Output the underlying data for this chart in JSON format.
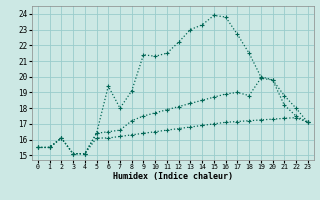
{
  "xlabel": "Humidex (Indice chaleur)",
  "bg_color": "#cce8e4",
  "grid_color": "#99cccc",
  "line_color": "#006655",
  "xlim": [
    -0.5,
    23.5
  ],
  "ylim": [
    14.7,
    24.5
  ],
  "yticks": [
    15,
    16,
    17,
    18,
    19,
    20,
    21,
    22,
    23,
    24
  ],
  "xticks": [
    0,
    1,
    2,
    3,
    4,
    5,
    6,
    7,
    8,
    9,
    10,
    11,
    12,
    13,
    14,
    15,
    16,
    17,
    18,
    19,
    20,
    21,
    22,
    23
  ],
  "line1_x": [
    0,
    1,
    2,
    3,
    4,
    5,
    6,
    7,
    8,
    9,
    10,
    11,
    12,
    13,
    14,
    15,
    16,
    17,
    18,
    19,
    20,
    21,
    22,
    23
  ],
  "line1_y": [
    15.5,
    15.5,
    16.1,
    15.1,
    15.1,
    16.4,
    19.4,
    18.0,
    19.1,
    21.4,
    21.3,
    21.5,
    22.2,
    23.0,
    23.3,
    23.9,
    23.8,
    22.7,
    21.5,
    20.0,
    19.8,
    18.2,
    17.5,
    17.1
  ],
  "line2_x": [
    0,
    1,
    2,
    3,
    4,
    5,
    6,
    7,
    8,
    9,
    10,
    11,
    12,
    13,
    14,
    15,
    16,
    17,
    18,
    19,
    20,
    21,
    22,
    23
  ],
  "line2_y": [
    15.5,
    15.5,
    16.1,
    15.1,
    15.1,
    16.4,
    16.5,
    16.6,
    17.2,
    17.5,
    17.7,
    17.9,
    18.1,
    18.3,
    18.5,
    18.7,
    18.9,
    19.0,
    18.8,
    19.9,
    19.8,
    18.8,
    18.0,
    17.1
  ],
  "line3_x": [
    0,
    1,
    2,
    3,
    4,
    5,
    6,
    7,
    8,
    9,
    10,
    11,
    12,
    13,
    14,
    15,
    16,
    17,
    18,
    19,
    20,
    21,
    22,
    23
  ],
  "line3_y": [
    15.5,
    15.5,
    16.1,
    15.1,
    15.1,
    16.1,
    16.1,
    16.2,
    16.3,
    16.4,
    16.5,
    16.6,
    16.7,
    16.8,
    16.9,
    17.0,
    17.1,
    17.15,
    17.2,
    17.25,
    17.3,
    17.35,
    17.4,
    17.1
  ]
}
